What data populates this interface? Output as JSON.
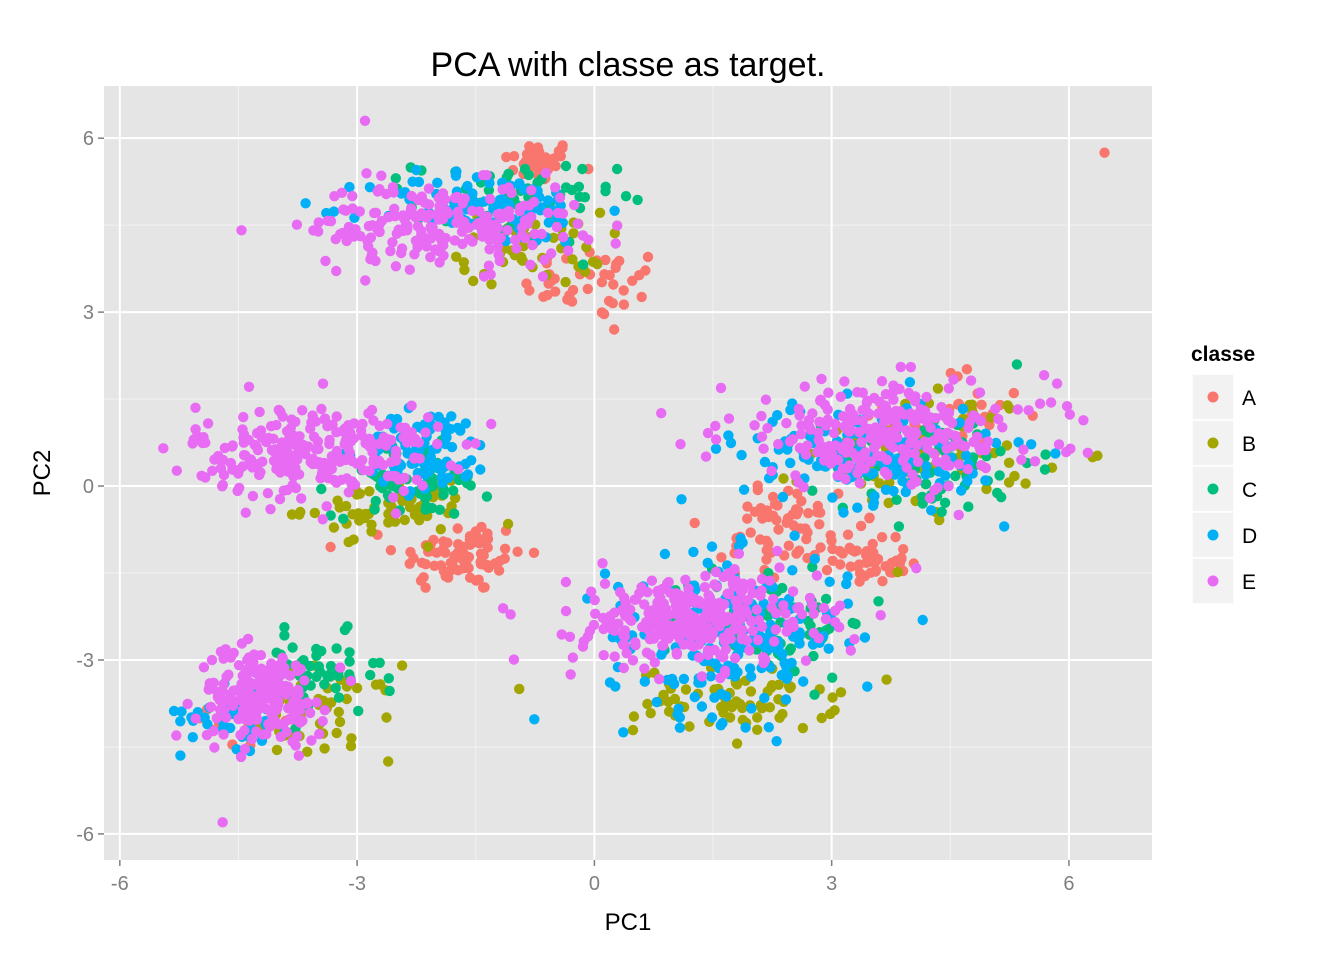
{
  "chart_data": {
    "type": "scatter",
    "title": "PCA with classe as target.",
    "xlabel": "PC1",
    "ylabel": "PC2",
    "xlim": [
      -6.2,
      7.05
    ],
    "ylim": [
      -6.45,
      6.9
    ],
    "xticks": [
      -6,
      -3,
      0,
      3,
      6
    ],
    "yticks": [
      -6,
      -3,
      0,
      3,
      6
    ],
    "xtick_labels": [
      "-6",
      "-3",
      "0",
      "3",
      "6"
    ],
    "ytick_labels": [
      "-6",
      "-3",
      "0",
      "3",
      "6"
    ],
    "grid": true,
    "legend": {
      "title": "classe",
      "placement": "right",
      "entries": [
        "A",
        "B",
        "C",
        "D",
        "E"
      ]
    },
    "colors": {
      "A": "#F8766D",
      "B": "#A3A500",
      "C": "#00BF7D",
      "D": "#00B0F6",
      "E": "#E76BF3"
    },
    "panel_background": "#E5E5E5",
    "grid_color": "#FFFFFF",
    "clusters": [
      {
        "name": "upper",
        "center": [
          -1.5,
          4.4
        ],
        "spread": [
          1.0,
          0.5
        ],
        "series": [
          {
            "class": "A",
            "count": 40,
            "center": [
              -0.7,
              5.6
            ],
            "spread": [
              0.25,
              0.2
            ]
          },
          {
            "class": "A",
            "count": 40,
            "center": [
              0.0,
              3.5
            ],
            "spread": [
              0.5,
              0.35
            ]
          },
          {
            "class": "B",
            "count": 50,
            "center": [
              -0.8,
              4.1
            ],
            "spread": [
              0.5,
              0.35
            ]
          },
          {
            "class": "C",
            "count": 60,
            "center": [
              -1.0,
              4.9
            ],
            "spread": [
              0.7,
              0.4
            ]
          },
          {
            "class": "D",
            "count": 90,
            "center": [
              -1.4,
              4.8
            ],
            "spread": [
              0.8,
              0.35
            ]
          },
          {
            "class": "E",
            "count": 220,
            "center": [
              -1.9,
              4.5
            ],
            "spread": [
              0.95,
              0.4
            ]
          }
        ]
      },
      {
        "name": "left-middle",
        "center": [
          -3.0,
          0.6
        ],
        "series": [
          {
            "class": "A",
            "count": 80,
            "center": [
              -1.7,
              -1.2
            ],
            "spread": [
              0.45,
              0.35
            ]
          },
          {
            "class": "B",
            "count": 60,
            "center": [
              -2.6,
              -0.4
            ],
            "spread": [
              0.6,
              0.25
            ]
          },
          {
            "class": "C",
            "count": 70,
            "center": [
              -2.3,
              0.1
            ],
            "spread": [
              0.55,
              0.35
            ]
          },
          {
            "class": "D",
            "count": 90,
            "center": [
              -2.1,
              0.6
            ],
            "spread": [
              0.45,
              0.4
            ]
          },
          {
            "class": "E",
            "count": 260,
            "center": [
              -3.5,
              0.6
            ],
            "spread": [
              0.85,
              0.45
            ]
          }
        ]
      },
      {
        "name": "lower-left",
        "center": [
          -4.1,
          -3.7
        ],
        "series": [
          {
            "class": "A",
            "count": 15,
            "center": [
              -4.4,
              -4.1
            ],
            "spread": [
              0.4,
              0.3
            ]
          },
          {
            "class": "B",
            "count": 60,
            "center": [
              -3.5,
              -3.9
            ],
            "spread": [
              0.55,
              0.45
            ]
          },
          {
            "class": "C",
            "count": 50,
            "center": [
              -3.5,
              -3.3
            ],
            "spread": [
              0.45,
              0.4
            ]
          },
          {
            "class": "D",
            "count": 40,
            "center": [
              -4.5,
              -3.9
            ],
            "spread": [
              0.4,
              0.35
            ]
          },
          {
            "class": "E",
            "count": 200,
            "center": [
              -4.2,
              -3.6
            ],
            "spread": [
              0.45,
              0.45
            ]
          }
        ]
      },
      {
        "name": "lower-center",
        "center": [
          1.6,
          -2.5
        ],
        "series": [
          {
            "class": "A",
            "count": 50,
            "center": [
              2.6,
              -1.0
            ],
            "spread": [
              0.6,
              0.4
            ]
          },
          {
            "class": "A",
            "count": 40,
            "center": [
              3.5,
              -1.3
            ],
            "spread": [
              0.25,
              0.2
            ]
          },
          {
            "class": "B",
            "count": 70,
            "center": [
              1.8,
              -3.7
            ],
            "spread": [
              0.7,
              0.3
            ]
          },
          {
            "class": "C",
            "count": 70,
            "center": [
              2.2,
              -2.3
            ],
            "spread": [
              0.7,
              0.55
            ]
          },
          {
            "class": "D",
            "count": 200,
            "center": [
              1.7,
              -2.6
            ],
            "spread": [
              0.85,
              0.75
            ]
          },
          {
            "class": "E",
            "count": 320,
            "center": [
              1.3,
              -2.3
            ],
            "spread": [
              0.85,
              0.45
            ]
          }
        ]
      },
      {
        "name": "right-middle",
        "center": [
          3.7,
          0.7
        ],
        "series": [
          {
            "class": "A",
            "count": 40,
            "center": [
              4.6,
              1.2
            ],
            "spread": [
              0.5,
              0.45
            ]
          },
          {
            "class": "A",
            "count": 25,
            "center": [
              2.3,
              -0.4
            ],
            "spread": [
              0.3,
              0.25
            ]
          },
          {
            "class": "B",
            "count": 70,
            "center": [
              4.2,
              0.6
            ],
            "spread": [
              0.8,
              0.6
            ]
          },
          {
            "class": "C",
            "count": 70,
            "center": [
              4.3,
              0.4
            ],
            "spread": [
              0.7,
              0.55
            ]
          },
          {
            "class": "D",
            "count": 160,
            "center": [
              3.5,
              0.6
            ],
            "spread": [
              0.9,
              0.5
            ]
          },
          {
            "class": "E",
            "count": 260,
            "center": [
              3.7,
              0.9
            ],
            "spread": [
              1.15,
              0.5
            ]
          }
        ]
      }
    ],
    "outliers": [
      {
        "class": "A",
        "x": 6.45,
        "y": 5.75
      },
      {
        "class": "B",
        "x": -0.95,
        "y": -3.5
      },
      {
        "class": "E",
        "x": -5.45,
        "y": 0.65
      },
      {
        "class": "E",
        "x": -2.9,
        "y": 6.3
      },
      {
        "class": "E",
        "x": -0.3,
        "y": -3.25
      },
      {
        "class": "E",
        "x": -4.7,
        "y": -5.8
      },
      {
        "class": "C",
        "x": 0.4,
        "y": 5.0
      },
      {
        "class": "A",
        "x": 0.25,
        "y": 2.7
      }
    ]
  }
}
